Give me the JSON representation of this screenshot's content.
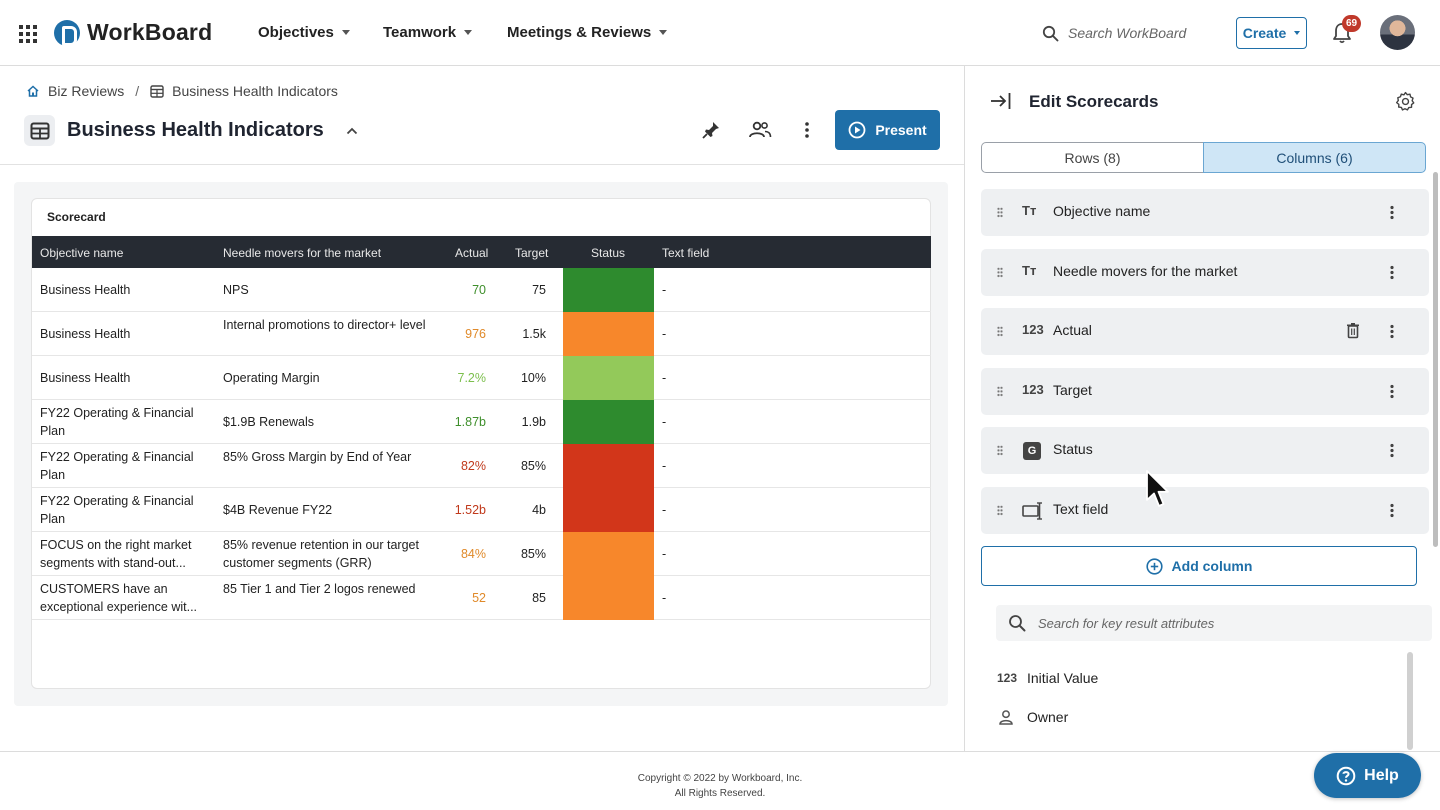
{
  "topbar": {
    "app_name": "WorkBoard",
    "nav": [
      {
        "label": "Objectives"
      },
      {
        "label": "Teamwork"
      },
      {
        "label": "Meetings & Reviews"
      }
    ],
    "search_placeholder": "Search WorkBoard",
    "create_label": "Create",
    "notification_count": "69"
  },
  "breadcrumb": {
    "items": [
      {
        "label": "Biz Reviews",
        "icon": "home-icon"
      },
      {
        "label": "Business Health Indicators",
        "icon": "table-icon"
      }
    ],
    "separator": "/"
  },
  "page": {
    "title": "Business Health Indicators",
    "present_label": "Present"
  },
  "scorecard": {
    "label": "Scorecard",
    "columns": [
      "Objective name",
      "Needle movers for the market",
      "Actual",
      "Target",
      "Status",
      "Text field"
    ],
    "rows": [
      {
        "objective": "Business Health",
        "needle": "NPS",
        "actual": "70",
        "actual_color": "#3f8f2c",
        "target": "75",
        "status_color": "#2e8b2e",
        "text": "-"
      },
      {
        "objective": "Business Health",
        "needle": "Internal promotions to director+ level",
        "actual": "976",
        "actual_color": "#e08a2a",
        "target": "1.5k",
        "status_color": "#f7872b",
        "text": "-"
      },
      {
        "objective": "Business Health",
        "needle": "Operating Margin",
        "actual": "7.2%",
        "actual_color": "#7cbf4d",
        "target": "10%",
        "status_color": "#93c95a",
        "text": "-"
      },
      {
        "objective": "FY22 Operating & Financial Plan",
        "needle": "$1.9B Renewals",
        "actual": "1.87b",
        "actual_color": "#3f8f2c",
        "target": "1.9b",
        "status_color": "#2e8b2e",
        "text": "-"
      },
      {
        "objective": "FY22 Operating & Financial Plan",
        "needle": "85% Gross Margin by End of Year",
        "actual": "82%",
        "actual_color": "#c0391b",
        "target": "85%",
        "status_color": "#d2361a",
        "text": "-"
      },
      {
        "objective": "FY22 Operating & Financial Plan",
        "needle": "$4B Revenue FY22",
        "actual": "1.52b",
        "actual_color": "#c0391b",
        "target": "4b",
        "status_color": "#d2361a",
        "text": "-"
      },
      {
        "objective": "FOCUS on the right market segments with stand-out...",
        "needle": "85% revenue retention in our target customer segments (GRR)",
        "actual": "84%",
        "actual_color": "#e08a2a",
        "target": "85%",
        "status_color": "#f7872b",
        "text": "-"
      },
      {
        "objective": "CUSTOMERS have an exceptional experience wit...",
        "needle": "85 Tier 1 and Tier 2 logos renewed",
        "actual": "52",
        "actual_color": "#e08a2a",
        "target": "85",
        "status_color": "#f7872b",
        "text": "-"
      }
    ]
  },
  "panel": {
    "title": "Edit Scorecards",
    "tabs": [
      {
        "label": "Rows (8)"
      },
      {
        "label": "Columns (6)"
      }
    ],
    "columns": [
      {
        "type_glyph": "Tт",
        "label": "Objective name"
      },
      {
        "type_glyph": "Tт",
        "label": "Needle movers for the market"
      },
      {
        "type_glyph": "123",
        "label": "Actual"
      },
      {
        "type_glyph": "123",
        "label": "Target"
      },
      {
        "type_glyph": "G",
        "label": "Status"
      },
      {
        "type_glyph": "text-field-icon",
        "label": "Text field"
      }
    ],
    "add_column_label": "Add column",
    "attr_search_placeholder": "Search for key result attributes",
    "attributes": [
      {
        "type_glyph": "123",
        "label": "Initial Value"
      },
      {
        "type_glyph": "person-icon",
        "label": "Owner"
      }
    ]
  },
  "footer": {
    "line1": "Copyright © 2022 by Workboard, Inc.",
    "line2": "All Rights Reserved."
  },
  "help_label": "Help",
  "colors": {
    "accent": "#1f6fa8",
    "header_dark": "#262b33"
  }
}
